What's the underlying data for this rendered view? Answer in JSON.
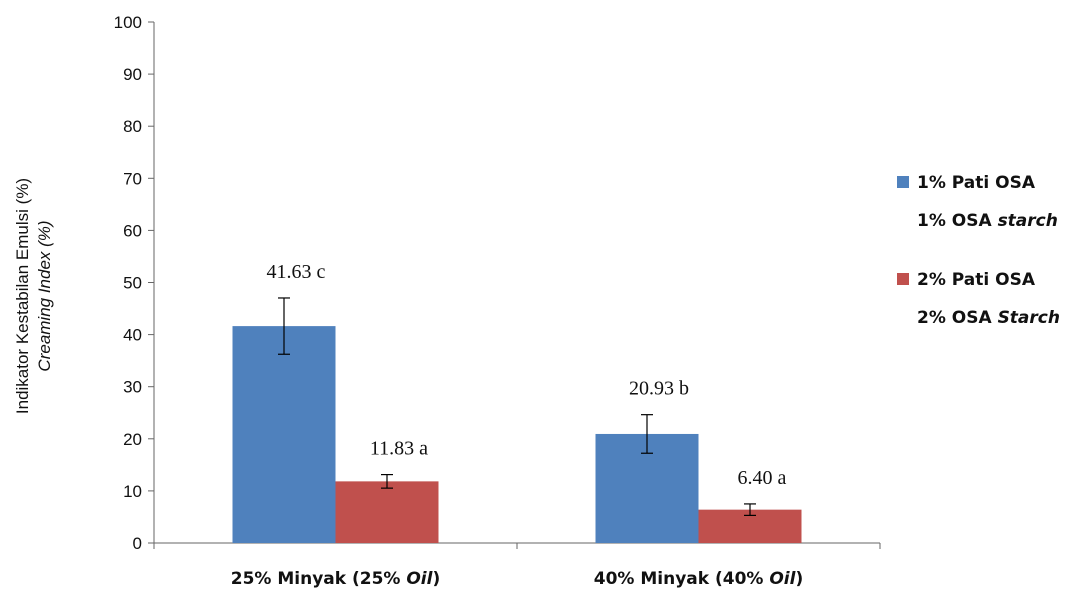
{
  "chart_data": {
    "type": "bar",
    "categories": [
      {
        "main": "25% Minyak (25% ",
        "italic": "Oil",
        "close": ")"
      },
      {
        "main": "40% Minyak (40% ",
        "italic": "Oil",
        "close": ")"
      }
    ],
    "series": [
      {
        "name": "1% Pati OSA",
        "name_line2": {
          "main": "1% OSA ",
          "italic": "starch"
        },
        "color": "#4F81BD",
        "values": [
          41.63,
          20.93
        ],
        "errors": [
          5.4,
          3.7
        ],
        "labels": [
          "41.63 c",
          "20.93 b"
        ]
      },
      {
        "name": "2% Pati OSA",
        "name_line2": {
          "main": "2% OSA ",
          "italic": "Starch"
        },
        "color": "#C0504D",
        "values": [
          11.83,
          6.4
        ],
        "errors": [
          1.3,
          1.1
        ],
        "labels": [
          "11.83 a",
          "6.40 a"
        ]
      }
    ],
    "ylabel": "Indikator Kestabilan Emulsi (%)",
    "ylabel2": "Creaming Index (%)",
    "ylim": [
      0,
      100
    ],
    "yticks": [
      0,
      10,
      20,
      30,
      40,
      50,
      60,
      70,
      80,
      90,
      100
    ],
    "grid": false,
    "legend_position": "right"
  }
}
